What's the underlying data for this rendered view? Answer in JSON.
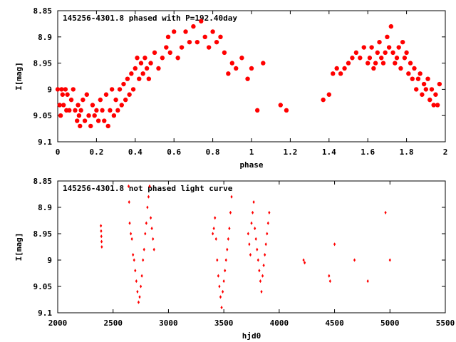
{
  "colors": {
    "points": "#ff0000",
    "frame": "#000000",
    "background": "#ffffff"
  },
  "chart_data": [
    {
      "type": "scatter",
      "title": "145256-4301.8 phased with P=192.40day",
      "xlabel": "phase",
      "ylabel": "I[mag]",
      "xlim": [
        0,
        2
      ],
      "ylim": [
        8.85,
        9.1
      ],
      "y_inverted": true,
      "xticks": [
        0,
        0.2,
        0.4,
        0.6,
        0.8,
        1,
        1.2,
        1.4,
        1.6,
        1.8,
        2
      ],
      "xtick_labels": [
        "0",
        "0.2",
        "0.4",
        "0.6",
        "0.8",
        "1",
        "1.2",
        "1.4",
        "1.6",
        "1.8",
        "2"
      ],
      "yticks": [
        8.85,
        8.9,
        8.95,
        9,
        9.05,
        9.1
      ],
      "ytick_labels": [
        "8.85",
        "8.9",
        "8.95",
        "9",
        "9.05",
        "9.1"
      ],
      "grid": false,
      "legend": "none",
      "marker": "filled-circle-large",
      "points": [
        [
          0.0,
          9.0
        ],
        [
          0.01,
          9.03
        ],
        [
          0.015,
          9.05
        ],
        [
          0.02,
          9.0
        ],
        [
          0.025,
          9.01
        ],
        [
          0.03,
          9.03
        ],
        [
          0.04,
          9.0
        ],
        [
          0.045,
          9.04
        ],
        [
          0.05,
          9.01
        ],
        [
          0.06,
          9.04
        ],
        [
          0.07,
          9.02
        ],
        [
          0.08,
          9.0
        ],
        [
          0.09,
          9.04
        ],
        [
          0.1,
          9.06
        ],
        [
          0.105,
          9.03
        ],
        [
          0.11,
          9.05
        ],
        [
          0.115,
          9.07
        ],
        [
          0.12,
          9.04
        ],
        [
          0.13,
          9.02
        ],
        [
          0.14,
          9.06
        ],
        [
          0.15,
          9.01
        ],
        [
          0.16,
          9.05
        ],
        [
          0.17,
          9.07
        ],
        [
          0.18,
          9.03
        ],
        [
          0.19,
          9.05
        ],
        [
          0.2,
          9.04
        ],
        [
          0.21,
          9.06
        ],
        [
          0.22,
          9.02
        ],
        [
          0.23,
          9.04
        ],
        [
          0.24,
          9.06
        ],
        [
          0.25,
          9.01
        ],
        [
          0.26,
          9.07
        ],
        [
          0.27,
          9.04
        ],
        [
          0.28,
          9.0
        ],
        [
          0.29,
          9.05
        ],
        [
          0.3,
          9.02
        ],
        [
          0.31,
          9.04
        ],
        [
          0.32,
          9.0
        ],
        [
          0.33,
          9.03
        ],
        [
          0.34,
          8.99
        ],
        [
          0.35,
          9.02
        ],
        [
          0.36,
          8.98
        ],
        [
          0.37,
          9.01
        ],
        [
          0.38,
          8.97
        ],
        [
          0.39,
          9.0
        ],
        [
          0.4,
          8.96
        ],
        [
          0.41,
          8.94
        ],
        [
          0.42,
          8.98
        ],
        [
          0.43,
          8.95
        ],
        [
          0.44,
          8.97
        ],
        [
          0.45,
          8.94
        ],
        [
          0.46,
          8.96
        ],
        [
          0.47,
          8.98
        ],
        [
          0.48,
          8.95
        ],
        [
          0.5,
          8.93
        ],
        [
          0.52,
          8.96
        ],
        [
          0.54,
          8.94
        ],
        [
          0.56,
          8.92
        ],
        [
          0.57,
          8.9
        ],
        [
          0.58,
          8.93
        ],
        [
          0.6,
          8.89
        ],
        [
          0.62,
          8.94
        ],
        [
          0.64,
          8.92
        ],
        [
          0.66,
          8.89
        ],
        [
          0.68,
          8.91
        ],
        [
          0.7,
          8.88
        ],
        [
          0.72,
          8.91
        ],
        [
          0.74,
          8.87
        ],
        [
          0.76,
          8.9
        ],
        [
          0.78,
          8.92
        ],
        [
          0.8,
          8.89
        ],
        [
          0.82,
          8.91
        ],
        [
          0.84,
          8.9
        ],
        [
          0.86,
          8.93
        ],
        [
          0.88,
          8.97
        ],
        [
          0.9,
          8.95
        ],
        [
          0.92,
          8.96
        ],
        [
          0.95,
          8.94
        ],
        [
          0.98,
          8.98
        ],
        [
          1.0,
          8.96
        ],
        [
          1.03,
          9.04
        ],
        [
          1.06,
          8.95
        ],
        [
          1.15,
          9.03
        ],
        [
          1.18,
          9.04
        ],
        [
          1.37,
          9.02
        ],
        [
          1.4,
          9.01
        ],
        [
          1.42,
          8.97
        ],
        [
          1.44,
          8.96
        ],
        [
          1.46,
          8.97
        ],
        [
          1.48,
          8.96
        ],
        [
          1.5,
          8.95
        ],
        [
          1.52,
          8.94
        ],
        [
          1.54,
          8.93
        ],
        [
          1.56,
          8.94
        ],
        [
          1.58,
          8.92
        ],
        [
          1.6,
          8.95
        ],
        [
          1.61,
          8.94
        ],
        [
          1.62,
          8.92
        ],
        [
          1.63,
          8.96
        ],
        [
          1.64,
          8.95
        ],
        [
          1.65,
          8.93
        ],
        [
          1.66,
          8.91
        ],
        [
          1.67,
          8.94
        ],
        [
          1.68,
          8.95
        ],
        [
          1.69,
          8.93
        ],
        [
          1.7,
          8.9
        ],
        [
          1.71,
          8.92
        ],
        [
          1.72,
          8.88
        ],
        [
          1.73,
          8.93
        ],
        [
          1.74,
          8.95
        ],
        [
          1.75,
          8.94
        ],
        [
          1.76,
          8.92
        ],
        [
          1.77,
          8.96
        ],
        [
          1.78,
          8.91
        ],
        [
          1.79,
          8.94
        ],
        [
          1.8,
          8.93
        ],
        [
          1.81,
          8.97
        ],
        [
          1.82,
          8.95
        ],
        [
          1.83,
          8.98
        ],
        [
          1.84,
          8.96
        ],
        [
          1.85,
          9.0
        ],
        [
          1.86,
          8.98
        ],
        [
          1.87,
          8.97
        ],
        [
          1.88,
          9.01
        ],
        [
          1.89,
          8.99
        ],
        [
          1.9,
          9.0
        ],
        [
          1.91,
          8.98
        ],
        [
          1.92,
          9.02
        ],
        [
          1.93,
          9.0
        ],
        [
          1.94,
          9.03
        ],
        [
          1.95,
          9.01
        ],
        [
          1.96,
          9.03
        ],
        [
          1.97,
          8.99
        ]
      ]
    },
    {
      "type": "scatter",
      "title": "145256-4301.8 not phased light curve",
      "xlabel": "hjd0",
      "ylabel": "I[mag]",
      "xlim": [
        2000,
        5500
      ],
      "ylim": [
        8.85,
        9.1
      ],
      "y_inverted": true,
      "xticks": [
        2000,
        2500,
        3000,
        3500,
        4000,
        4500,
        5000,
        5500
      ],
      "xtick_labels": [
        "2000",
        "2500",
        "3000",
        "3500",
        "4000",
        "4500",
        "5000",
        "5500"
      ],
      "yticks": [
        8.85,
        8.9,
        8.95,
        9,
        9.05,
        9.1
      ],
      "ytick_labels": [
        "8.85",
        "8.9",
        "8.95",
        "9",
        "9.05",
        "9.1"
      ],
      "grid": false,
      "legend": "none",
      "marker": "small-diamond",
      "points": [
        [
          2390,
          8.935
        ],
        [
          2392,
          8.945
        ],
        [
          2394,
          8.955
        ],
        [
          2396,
          8.965
        ],
        [
          2398,
          8.975
        ],
        [
          2640,
          8.86
        ],
        [
          2645,
          8.89
        ],
        [
          2650,
          8.93
        ],
        [
          2660,
          8.95
        ],
        [
          2670,
          8.96
        ],
        [
          2680,
          8.99
        ],
        [
          2690,
          9.0
        ],
        [
          2700,
          9.02
        ],
        [
          2710,
          9.04
        ],
        [
          2720,
          9.06
        ],
        [
          2730,
          9.08
        ],
        [
          2740,
          9.07
        ],
        [
          2750,
          9.05
        ],
        [
          2760,
          9.03
        ],
        [
          2770,
          9.0
        ],
        [
          2780,
          8.98
        ],
        [
          2790,
          8.95
        ],
        [
          2800,
          8.93
        ],
        [
          2810,
          8.9
        ],
        [
          2820,
          8.88
        ],
        [
          2830,
          8.86
        ],
        [
          2840,
          8.92
        ],
        [
          2850,
          8.94
        ],
        [
          2860,
          8.96
        ],
        [
          2870,
          8.98
        ],
        [
          3400,
          8.95
        ],
        [
          3410,
          8.94
        ],
        [
          3420,
          8.92
        ],
        [
          3430,
          8.96
        ],
        [
          3440,
          9.0
        ],
        [
          3450,
          9.03
        ],
        [
          3460,
          9.05
        ],
        [
          3470,
          9.07
        ],
        [
          3480,
          9.09
        ],
        [
          3490,
          9.06
        ],
        [
          3500,
          9.04
        ],
        [
          3510,
          9.02
        ],
        [
          3520,
          9.0
        ],
        [
          3530,
          8.98
        ],
        [
          3540,
          8.96
        ],
        [
          3550,
          8.94
        ],
        [
          3560,
          8.91
        ],
        [
          3570,
          8.88
        ],
        [
          3720,
          8.95
        ],
        [
          3730,
          8.97
        ],
        [
          3740,
          8.99
        ],
        [
          3750,
          8.93
        ],
        [
          3760,
          8.91
        ],
        [
          3770,
          8.89
        ],
        [
          3780,
          8.94
        ],
        [
          3790,
          8.96
        ],
        [
          3800,
          8.98
        ],
        [
          3810,
          9.0
        ],
        [
          3820,
          9.02
        ],
        [
          3830,
          9.04
        ],
        [
          3840,
          9.06
        ],
        [
          3850,
          9.03
        ],
        [
          3860,
          9.01
        ],
        [
          3870,
          8.99
        ],
        [
          3880,
          8.97
        ],
        [
          3890,
          8.95
        ],
        [
          3900,
          8.93
        ],
        [
          3910,
          8.91
        ],
        [
          4220,
          9.0
        ],
        [
          4230,
          9.005
        ],
        [
          4450,
          9.03
        ],
        [
          4460,
          9.04
        ],
        [
          4500,
          8.97
        ],
        [
          4680,
          9.0
        ],
        [
          4800,
          9.04
        ],
        [
          4960,
          8.91
        ],
        [
          5000,
          9.0
        ]
      ]
    }
  ]
}
